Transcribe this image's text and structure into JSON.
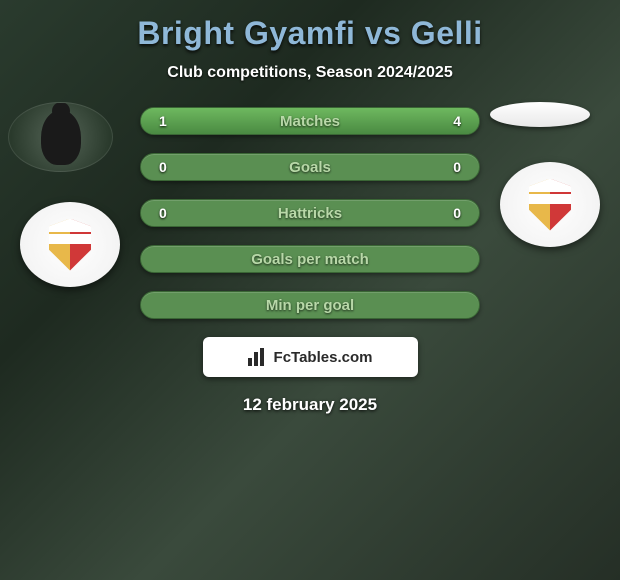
{
  "header": {
    "player1_name": "Bright Gyamfi",
    "vs_text": "vs",
    "player2_name": "Gelli",
    "subtitle": "Club competitions, Season 2024/2025"
  },
  "stats": [
    {
      "label": "Matches",
      "left_value": "1",
      "right_value": "4",
      "left_fill_pct": 20,
      "right_fill_pct": 80
    },
    {
      "label": "Goals",
      "left_value": "0",
      "right_value": "0",
      "left_fill_pct": 0,
      "right_fill_pct": 0
    },
    {
      "label": "Hattricks",
      "left_value": "0",
      "right_value": "0",
      "left_fill_pct": 0,
      "right_fill_pct": 0
    },
    {
      "label": "Goals per match",
      "left_value": "",
      "right_value": "",
      "left_fill_pct": 0,
      "right_fill_pct": 0
    },
    {
      "label": "Min per goal",
      "left_value": "",
      "right_value": "",
      "left_fill_pct": 0,
      "right_fill_pct": 0
    }
  ],
  "branding": {
    "text": "FcTables.com"
  },
  "footer": {
    "date": "12 february 2025"
  },
  "colors": {
    "title_color": "#8fb8d8",
    "stat_bar_bg": "#5a8f52",
    "stat_bar_fill": "#6eb85f",
    "stat_label_color": "#b8d8a8",
    "badge_gold": "#e8b84a",
    "badge_red": "#d03838"
  }
}
